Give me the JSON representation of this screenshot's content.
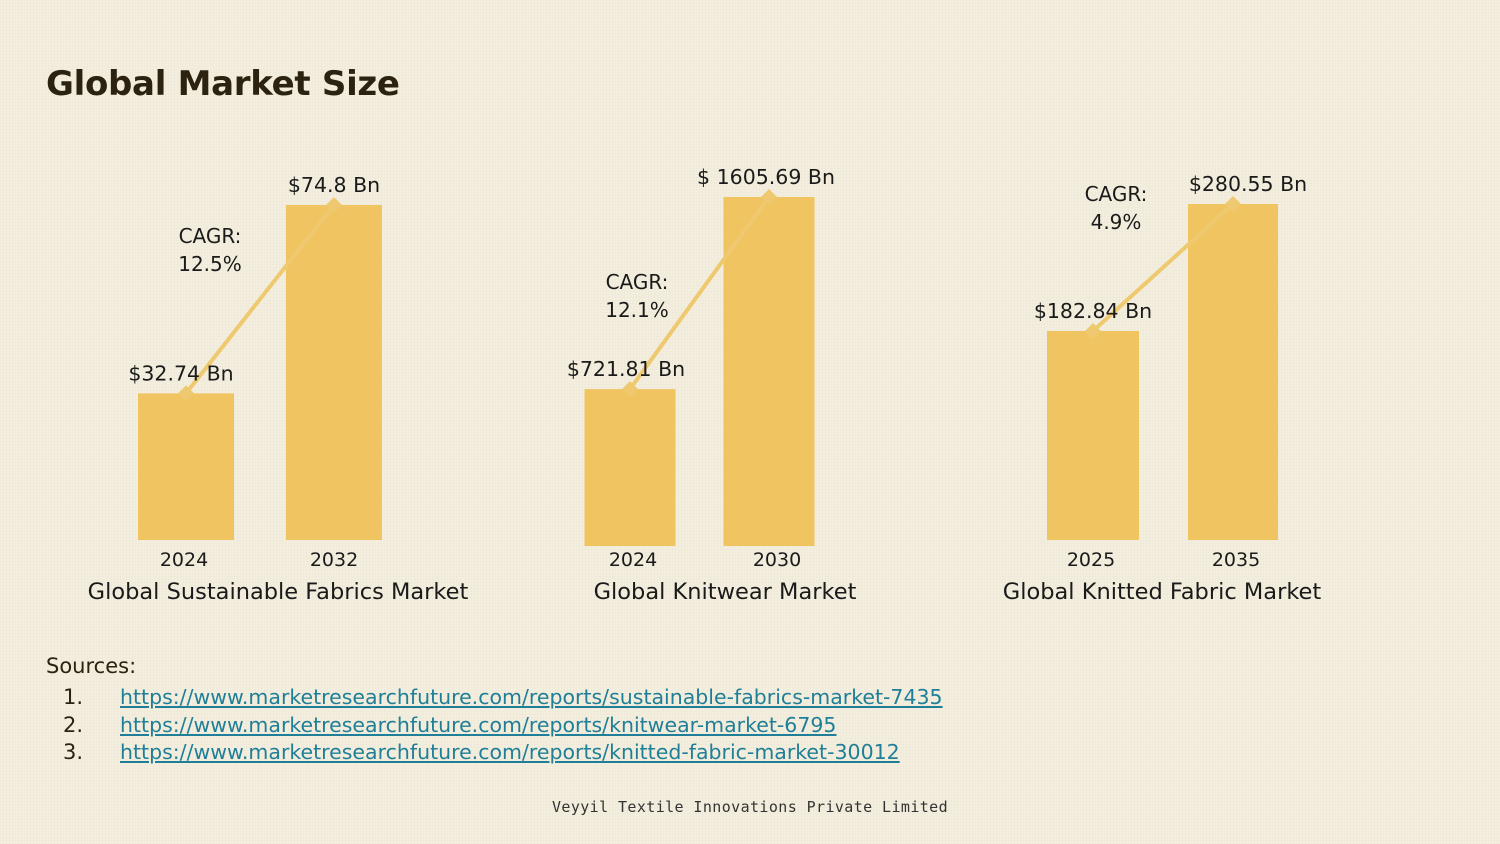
{
  "page": {
    "title": "Global Market Size",
    "footer": "Veyyil Textile Innovations Private Limited"
  },
  "colors": {
    "bar": "#f1c462",
    "trend": "#efc96f",
    "text": "#1a1a1a",
    "link": "#1f7f98"
  },
  "chart_data": [
    {
      "type": "bar",
      "title": "Global Sustainable Fabrics Market",
      "categories": [
        "2024",
        "2032"
      ],
      "values": [
        32.74,
        74.8
      ],
      "value_labels": [
        "$32.74 Bn",
        "$74.8 Bn"
      ],
      "unit": "USD Bn",
      "cagr_label": [
        "CAGR:",
        "12.5%"
      ]
    },
    {
      "type": "bar",
      "title": "Global Knitwear Market",
      "categories": [
        "2024",
        "2030"
      ],
      "values": [
        721.81,
        1605.69
      ],
      "value_labels": [
        "$721.81 Bn",
        "$ 1605.69 Bn"
      ],
      "unit": "USD Bn",
      "cagr_label": [
        "CAGR:",
        "12.1%"
      ]
    },
    {
      "type": "bar",
      "title": "Global Knitted Fabric Market",
      "categories": [
        "2025",
        "2035"
      ],
      "values": [
        182.84,
        280.55
      ],
      "value_labels": [
        "$182.84 Bn",
        "$280.55 Bn"
      ],
      "unit": "USD Bn",
      "cagr_label": [
        "CAGR:",
        "4.9%"
      ]
    }
  ],
  "sources": {
    "heading": "Sources:",
    "items": [
      {
        "num": "1.",
        "url": "https://www.marketresearchfuture.com/reports/sustainable-fabrics-market-7435"
      },
      {
        "num": "2.",
        "url": "https://www.marketresearchfuture.com/reports/knitwear-market-6795"
      },
      {
        "num": "3.",
        "url": "https://www.marketresearchfuture.com/reports/knitted-fabric-market-30012"
      }
    ]
  }
}
